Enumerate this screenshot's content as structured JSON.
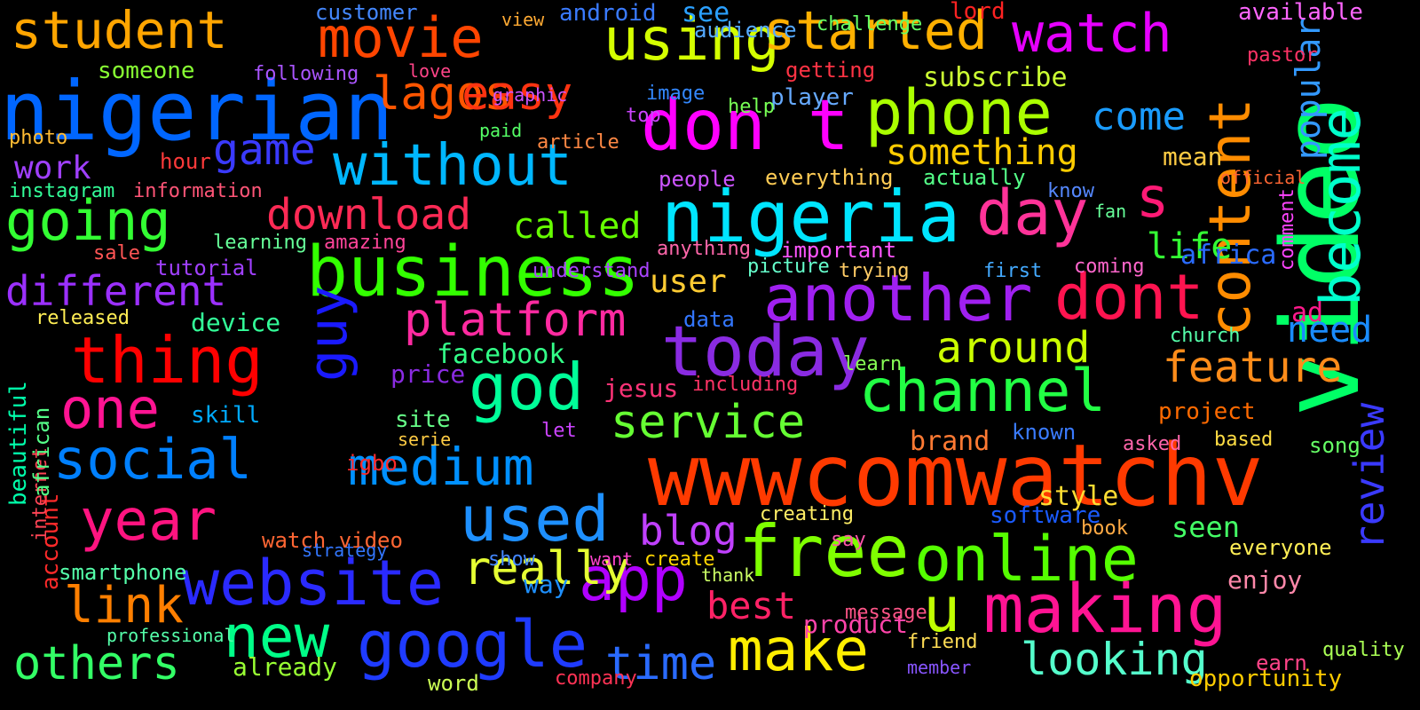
{
  "background": "#000000",
  "words": [
    {
      "text": "wwwcomwatchv",
      "color": "#ff3a00"
    },
    {
      "text": "video",
      "color": "#00ff66"
    },
    {
      "text": "nigerian",
      "color": "#0066ff"
    },
    {
      "text": "business",
      "color": "#33ff00"
    },
    {
      "text": "nigeria",
      "color": "#00e5ff"
    },
    {
      "text": "another",
      "color": "#a020f0"
    },
    {
      "text": "social",
      "color": "#0080ff"
    },
    {
      "text": "medium",
      "color": "#0090ff"
    },
    {
      "text": "website",
      "color": "#2a2aff"
    },
    {
      "text": "google",
      "color": "#1f3bff"
    },
    {
      "text": "free",
      "color": "#7fff00"
    },
    {
      "text": "online",
      "color": "#55ff00"
    },
    {
      "text": "making",
      "color": "#ff1493"
    },
    {
      "text": "today",
      "color": "#8a2be2"
    },
    {
      "text": "channel",
      "color": "#22ff44"
    },
    {
      "text": "without",
      "color": "#00b7ff"
    },
    {
      "text": "phone",
      "color": "#aaff00"
    },
    {
      "text": "content",
      "color": "#ff8c00"
    },
    {
      "text": "become",
      "color": "#00ffcc"
    },
    {
      "text": "don t",
      "color": "#ff00ff"
    },
    {
      "text": "dont",
      "color": "#ff1450"
    },
    {
      "text": "day",
      "color": "#ff3399"
    },
    {
      "text": "student",
      "color": "#ffa500"
    },
    {
      "text": "movie",
      "color": "#ff4500"
    },
    {
      "text": "using",
      "color": "#d4ff00"
    },
    {
      "text": "started",
      "color": "#ffb000"
    },
    {
      "text": "watch",
      "color": "#e600ff"
    },
    {
      "text": "going",
      "color": "#33ff33"
    },
    {
      "text": "different",
      "color": "#9b30ff"
    },
    {
      "text": "download",
      "color": "#ff2a55"
    },
    {
      "text": "thing",
      "color": "#ff0000"
    },
    {
      "text": "one",
      "color": "#ff1493"
    },
    {
      "text": "year",
      "color": "#ff1480"
    },
    {
      "text": "god",
      "color": "#00ff99"
    },
    {
      "text": "service",
      "color": "#66ff33"
    },
    {
      "text": "used",
      "color": "#1e90ff"
    },
    {
      "text": "app",
      "color": "#b000ff"
    },
    {
      "text": "make",
      "color": "#ffee00"
    },
    {
      "text": "new",
      "color": "#00ff88"
    },
    {
      "text": "others",
      "color": "#33ff66"
    },
    {
      "text": "link",
      "color": "#ff7f00"
    },
    {
      "text": "time",
      "color": "#2a6bff"
    },
    {
      "text": "u",
      "color": "#c0ff00"
    },
    {
      "text": "s",
      "color": "#ff1a75"
    },
    {
      "text": "guy",
      "color": "#1a1aff"
    },
    {
      "text": "lagos",
      "color": "#ff5500"
    },
    {
      "text": "easy",
      "color": "#ff3311"
    },
    {
      "text": "game",
      "color": "#3a3aff"
    },
    {
      "text": "work",
      "color": "#a040ff"
    },
    {
      "text": "platform",
      "color": "#ff2aa0"
    },
    {
      "text": "feature",
      "color": "#ff8c1a"
    },
    {
      "text": "around",
      "color": "#ccff00"
    },
    {
      "text": "really",
      "color": "#e6ff33"
    },
    {
      "text": "blog",
      "color": "#c040ff"
    },
    {
      "text": "best",
      "color": "#ff2266"
    },
    {
      "text": "looking",
      "color": "#55ffcc"
    },
    {
      "text": "need",
      "color": "#1a8cff"
    },
    {
      "text": "come",
      "color": "#1a9cff"
    },
    {
      "text": "something",
      "color": "#ffcc00"
    },
    {
      "text": "called",
      "color": "#66ff00"
    },
    {
      "text": "life",
      "color": "#33ff33"
    },
    {
      "text": "popular",
      "color": "#3399ff"
    },
    {
      "text": "review",
      "color": "#3a3aff"
    },
    {
      "text": "subscribe",
      "color": "#ccff33"
    },
    {
      "text": "facebook",
      "color": "#33ff88"
    },
    {
      "text": "device",
      "color": "#33ff99"
    },
    {
      "text": "user",
      "color": "#ffcc33"
    },
    {
      "text": "project",
      "color": "#ff6a00"
    },
    {
      "text": "brand",
      "color": "#ff7a33"
    },
    {
      "text": "seen",
      "color": "#44ff66"
    },
    {
      "text": "style",
      "color": "#ffdd33"
    },
    {
      "text": "beautiful",
      "color": "#00ffaa"
    },
    {
      "text": "africa",
      "color": "#2a6bff"
    },
    {
      "text": "jesus",
      "color": "#ff3377"
    },
    {
      "text": "price",
      "color": "#8a2be2"
    },
    {
      "text": "mean",
      "color": "#ffcc44"
    },
    {
      "text": "available",
      "color": "#ff66ff"
    },
    {
      "text": "ad",
      "color": "#ff1a8c"
    },
    {
      "text": "enjoy",
      "color": "#ff88aa"
    },
    {
      "text": "software",
      "color": "#1a5bff"
    },
    {
      "text": "church",
      "color": "#55ffaa"
    },
    {
      "text": "skill",
      "color": "#00aaff"
    },
    {
      "text": "site",
      "color": "#66ff88"
    },
    {
      "text": "data",
      "color": "#3377ff"
    },
    {
      "text": "igbo",
      "color": "#ff2a2a"
    },
    {
      "text": "product",
      "color": "#ff44aa"
    },
    {
      "text": "create",
      "color": "#ffd700"
    },
    {
      "text": "way",
      "color": "#1e90ff"
    },
    {
      "text": "watch video",
      "color": "#ff6633"
    },
    {
      "text": "account",
      "color": "#ff2a2a"
    },
    {
      "text": "smartphone",
      "color": "#55ffaa"
    },
    {
      "text": "already",
      "color": "#99ff33"
    },
    {
      "text": "word",
      "color": "#ccff55"
    },
    {
      "text": "android",
      "color": "#3a7bff"
    },
    {
      "text": "see",
      "color": "#2aa0ff"
    },
    {
      "text": "customer",
      "color": "#4488ff"
    },
    {
      "text": "audience",
      "color": "#55aaff"
    },
    {
      "text": "getting",
      "color": "#ff3344"
    },
    {
      "text": "player",
      "color": "#66aaff"
    },
    {
      "text": "help",
      "color": "#77ff55"
    },
    {
      "text": "everything",
      "color": "#ffcc55"
    },
    {
      "text": "actually",
      "color": "#55ff88"
    },
    {
      "text": "information",
      "color": "#ff5577"
    },
    {
      "text": "instagram",
      "color": "#33ff99"
    },
    {
      "text": "tutorial",
      "color": "#a040ff"
    },
    {
      "text": "important",
      "color": "#ff55ff"
    },
    {
      "text": "known",
      "color": "#3a7bff"
    },
    {
      "text": "based",
      "color": "#ffdd44"
    },
    {
      "text": "song",
      "color": "#66ff66"
    },
    {
      "text": "everyone",
      "color": "#ffee55"
    },
    {
      "text": "opportunity",
      "color": "#ffcc00"
    },
    {
      "text": "quality",
      "color": "#aaff55"
    },
    {
      "text": "earn",
      "color": "#ff4488"
    },
    {
      "text": "message",
      "color": "#ff5588"
    },
    {
      "text": "friend",
      "color": "#ffdd55"
    },
    {
      "text": "member",
      "color": "#8855ff"
    },
    {
      "text": "company",
      "color": "#ff3355"
    },
    {
      "text": "professional",
      "color": "#55ffaa"
    },
    {
      "text": "internet",
      "color": "#ff4455"
    },
    {
      "text": "african",
      "color": "#55ff88"
    },
    {
      "text": "hour",
      "color": "#ff3a3a"
    },
    {
      "text": "someone",
      "color": "#88ff33"
    },
    {
      "text": "following",
      "color": "#aa55ff"
    },
    {
      "text": "photo",
      "color": "#ffbb33"
    },
    {
      "text": "graphic",
      "color": "#cc55ff"
    },
    {
      "text": "paid",
      "color": "#55ff66"
    },
    {
      "text": "article",
      "color": "#ff8844"
    },
    {
      "text": "people",
      "color": "#cc55ff"
    },
    {
      "text": "fan",
      "color": "#66ff99"
    },
    {
      "text": "know",
      "color": "#5588ff"
    },
    {
      "text": "understand",
      "color": "#aa44ff"
    },
    {
      "text": "anything",
      "color": "#ff66aa"
    },
    {
      "text": "learning",
      "color": "#66ff99"
    },
    {
      "text": "amazing",
      "color": "#ff4499"
    },
    {
      "text": "sale",
      "color": "#ff5555"
    },
    {
      "text": "released",
      "color": "#ffee55"
    },
    {
      "text": "picture",
      "color": "#66ffcc"
    },
    {
      "text": "trying",
      "color": "#ffcc66"
    },
    {
      "text": "first",
      "color": "#44aaff"
    },
    {
      "text": "coming",
      "color": "#ff66cc"
    },
    {
      "text": "comment",
      "color": "#ff44ff"
    },
    {
      "text": "including",
      "color": "#ff3366"
    },
    {
      "text": "learn",
      "color": "#88ff55"
    },
    {
      "text": "let",
      "color": "#cc44ff"
    },
    {
      "text": "serie",
      "color": "#ffcc44"
    },
    {
      "text": "asked",
      "color": "#ff66aa"
    },
    {
      "text": "book",
      "color": "#ffaa44"
    },
    {
      "text": "strategy",
      "color": "#3377ff"
    },
    {
      "text": "creating",
      "color": "#ffee66"
    },
    {
      "text": "say",
      "color": "#ff55aa"
    },
    {
      "text": "show",
      "color": "#4488ff"
    },
    {
      "text": "want",
      "color": "#ff44cc"
    },
    {
      "text": "thank",
      "color": "#ccff66"
    },
    {
      "text": "lord",
      "color": "#ff2222"
    },
    {
      "text": "challenge",
      "color": "#66ff66"
    },
    {
      "text": "view",
      "color": "#ffaa33"
    },
    {
      "text": "pastor",
      "color": "#ff3366"
    },
    {
      "text": "love",
      "color": "#ff4488"
    },
    {
      "text": "image",
      "color": "#3388ff"
    },
    {
      "text": "top",
      "color": "#cc44ff"
    },
    {
      "text": "official",
      "color": "#ff6633"
    }
  ]
}
